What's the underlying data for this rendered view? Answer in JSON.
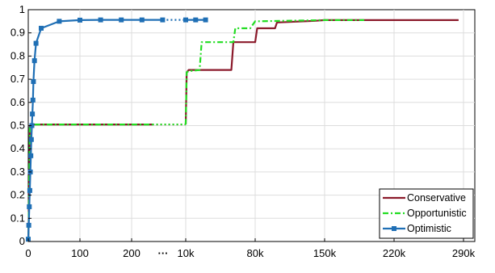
{
  "chart_data": {
    "type": "line",
    "title": "",
    "xlabel": "",
    "ylabel": "",
    "grid": true,
    "legend_position": "bottom-right",
    "ylim": [
      0,
      1
    ],
    "y_ticks": [
      "0",
      "0.1",
      "0.2",
      "0.3",
      "0.4",
      "0.5",
      "0.6",
      "0.7",
      "0.8",
      "0.9",
      "1"
    ],
    "x_axis_note": "broken axis: left segment linear 0–300, right segment linear 10k–290k",
    "x_break_marker": "···",
    "x_ticks": [
      "0",
      "100",
      "200",
      "10k",
      "80k",
      "150k",
      "220k",
      "290k"
    ],
    "series": [
      {
        "name": "Conservative",
        "color": "#8b1a2b",
        "style": "solid",
        "marker": "none",
        "points": [
          [
            0,
            0
          ],
          [
            1,
            0.1
          ],
          [
            2,
            0.3
          ],
          [
            3,
            0.5
          ],
          [
            6,
            0.505
          ],
          [
            240,
            0.505
          ],
          [
            10000,
            0.505
          ],
          [
            11000,
            0.73
          ],
          [
            13000,
            0.74
          ],
          [
            56000,
            0.74
          ],
          [
            58000,
            0.86
          ],
          [
            80000,
            0.86
          ],
          [
            82000,
            0.92
          ],
          [
            100000,
            0.92
          ],
          [
            102000,
            0.945
          ],
          [
            140000,
            0.952
          ],
          [
            150000,
            0.955
          ],
          [
            285000,
            0.955
          ]
        ]
      },
      {
        "name": "Opportunistic",
        "color": "#22dd22",
        "style": "dashdot",
        "marker": "none",
        "points": [
          [
            0,
            0
          ],
          [
            1,
            0.1
          ],
          [
            2,
            0.3
          ],
          [
            3,
            0.5
          ],
          [
            6,
            0.505
          ],
          [
            240,
            0.505
          ],
          [
            10000,
            0.505
          ],
          [
            11000,
            0.73
          ],
          [
            13000,
            0.735
          ],
          [
            24000,
            0.74
          ],
          [
            26000,
            0.86
          ],
          [
            58000,
            0.86
          ],
          [
            60000,
            0.92
          ],
          [
            75000,
            0.92
          ],
          [
            80000,
            0.95
          ],
          [
            150000,
            0.955
          ],
          [
            190000,
            0.955
          ]
        ]
      },
      {
        "name": "Optimistic",
        "color": "#1f6fb5",
        "style": "solid",
        "marker": "square",
        "points": [
          [
            0,
            0.01
          ],
          [
            1,
            0.07
          ],
          [
            2,
            0.15
          ],
          [
            3,
            0.22
          ],
          [
            4,
            0.3
          ],
          [
            5,
            0.37
          ],
          [
            6,
            0.44
          ],
          [
            7,
            0.5
          ],
          [
            8,
            0.55
          ],
          [
            9,
            0.61
          ],
          [
            10,
            0.69
          ],
          [
            12,
            0.78
          ],
          [
            15,
            0.855
          ],
          [
            25,
            0.92
          ],
          [
            60,
            0.95
          ],
          [
            100,
            0.955
          ],
          [
            140,
            0.956
          ],
          [
            180,
            0.956
          ],
          [
            220,
            0.956
          ],
          [
            260,
            0.956
          ],
          [
            10000,
            0.956
          ],
          [
            20000,
            0.956
          ],
          [
            30000,
            0.956
          ]
        ]
      }
    ]
  }
}
